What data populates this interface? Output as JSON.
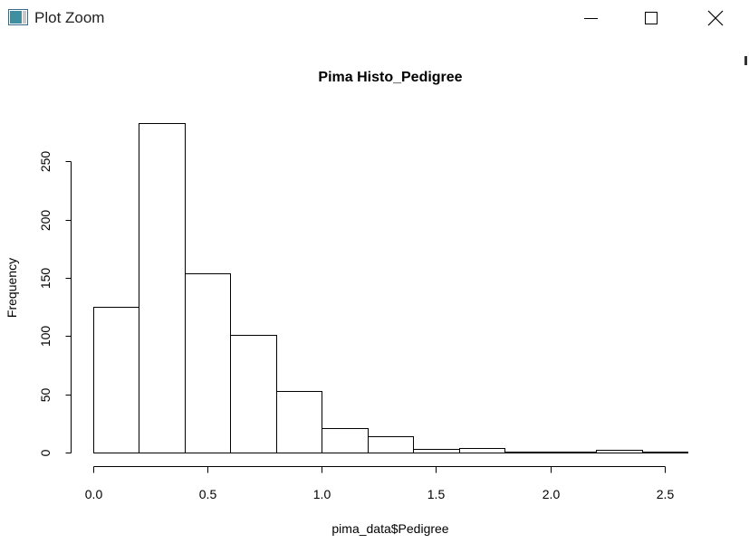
{
  "window": {
    "title": "Plot Zoom",
    "icons": {
      "app": "plot-window-icon",
      "minimize": "minimize-icon",
      "maximize": "maximize-icon",
      "close": "close-icon"
    }
  },
  "chart_data": {
    "type": "bar",
    "subtype": "histogram",
    "title": "Pima Histo_Pedigree",
    "xlabel": "pima_data$Pedigree",
    "ylabel": "Frequency",
    "bin_edges": [
      0.0,
      0.2,
      0.4,
      0.6,
      0.8,
      1.0,
      1.2,
      1.4,
      1.6,
      1.8,
      2.0,
      2.2,
      2.4,
      2.6
    ],
    "values": [
      125,
      283,
      154,
      101,
      53,
      21,
      14,
      3,
      4,
      1,
      1,
      2,
      1
    ],
    "xlim": [
      0.0,
      2.6
    ],
    "ylim": [
      0,
      283
    ],
    "x_ticks": [
      0.0,
      0.5,
      1.0,
      1.5,
      2.0,
      2.5
    ],
    "x_tick_labels": [
      "0.0",
      "0.5",
      "1.0",
      "1.5",
      "2.0",
      "2.5"
    ],
    "y_ticks": [
      0,
      50,
      100,
      150,
      200,
      250
    ],
    "y_tick_labels": [
      "0",
      "50",
      "100",
      "150",
      "200",
      "250"
    ],
    "grid": false,
    "bar_fill": "#ffffff",
    "bar_stroke": "#000000"
  }
}
